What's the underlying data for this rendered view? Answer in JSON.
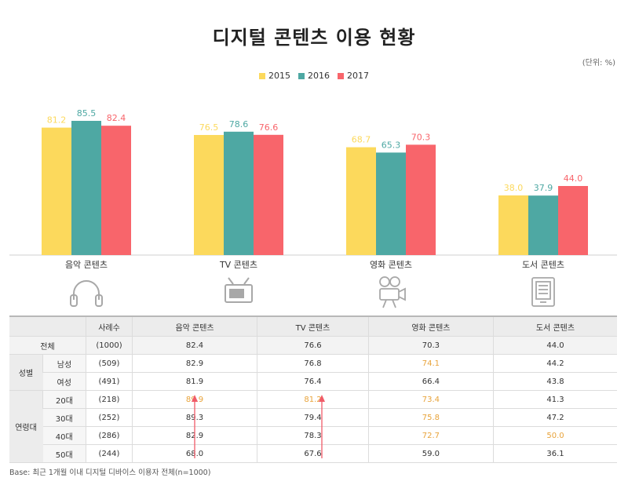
{
  "title": "디지털 콘텐츠 이용 현황",
  "unit": "(단위: %)",
  "colors": {
    "2015": "#fcd95c",
    "2016": "#4ea8a3",
    "2017": "#f8656b",
    "highlight": "#e8a33a",
    "arrow": "#f05b68"
  },
  "chart_data": {
    "type": "bar",
    "categories": [
      "음악 콘텐츠",
      "TV 콘텐츠",
      "영화 콘텐츠",
      "도서 콘텐츠"
    ],
    "series": [
      {
        "name": "2015",
        "values": [
          81.2,
          76.5,
          68.7,
          38.0
        ],
        "labels": [
          "81.2",
          "76.5",
          "68.7",
          "38.0"
        ]
      },
      {
        "name": "2016",
        "values": [
          85.5,
          78.6,
          65.3,
          37.9
        ],
        "labels": [
          "85.5",
          "78.6",
          "65.3",
          "37.9"
        ]
      },
      {
        "name": "2017",
        "values": [
          82.4,
          76.6,
          70.3,
          44.0
        ],
        "labels": [
          "82.4",
          "76.6",
          "70.3",
          "44.0"
        ]
      }
    ],
    "ylim": [
      0,
      100
    ],
    "legend": "top-center",
    "icons": [
      "headphones-icon",
      "tv-icon",
      "movie-camera-icon",
      "ebook-icon"
    ]
  },
  "table": {
    "headers": [
      "",
      "사례수",
      "음악 콘텐츠",
      "TV 콘텐츠",
      "영화 콘텐츠",
      "도서 콘텐츠"
    ],
    "total": {
      "label": "전체",
      "n": "(1000)",
      "values": [
        "82.4",
        "76.6",
        "70.3",
        "44.0"
      ]
    },
    "gender": {
      "label": "성별",
      "rows": [
        {
          "label": "남성",
          "n": "(509)",
          "values": [
            "82.9",
            "76.8",
            "74.1",
            "44.2"
          ],
          "highlight": [
            false,
            false,
            true,
            false
          ]
        },
        {
          "label": "여성",
          "n": "(491)",
          "values": [
            "81.9",
            "76.4",
            "66.4",
            "43.8"
          ],
          "highlight": [
            false,
            false,
            false,
            false
          ]
        }
      ]
    },
    "age": {
      "label": "연령대",
      "rows": [
        {
          "label": "20대",
          "n": "(218)",
          "values": [
            "89.9",
            "81.2",
            "73.4",
            "41.3"
          ],
          "highlight": [
            true,
            true,
            true,
            false
          ]
        },
        {
          "label": "30대",
          "n": "(252)",
          "values": [
            "89.3",
            "79.4",
            "75.8",
            "47.2"
          ],
          "highlight": [
            false,
            false,
            true,
            false
          ]
        },
        {
          "label": "40대",
          "n": "(286)",
          "values": [
            "82.9",
            "78.3",
            "72.7",
            "50.0"
          ],
          "highlight": [
            false,
            false,
            true,
            true
          ]
        },
        {
          "label": "50대",
          "n": "(244)",
          "values": [
            "68.0",
            "67.6",
            "59.0",
            "36.1"
          ],
          "highlight": [
            false,
            false,
            false,
            false
          ]
        }
      ]
    }
  },
  "base_note": "Base: 최근 1개월 이내 디지털 디바이스 이용자 전체(n=1000)"
}
